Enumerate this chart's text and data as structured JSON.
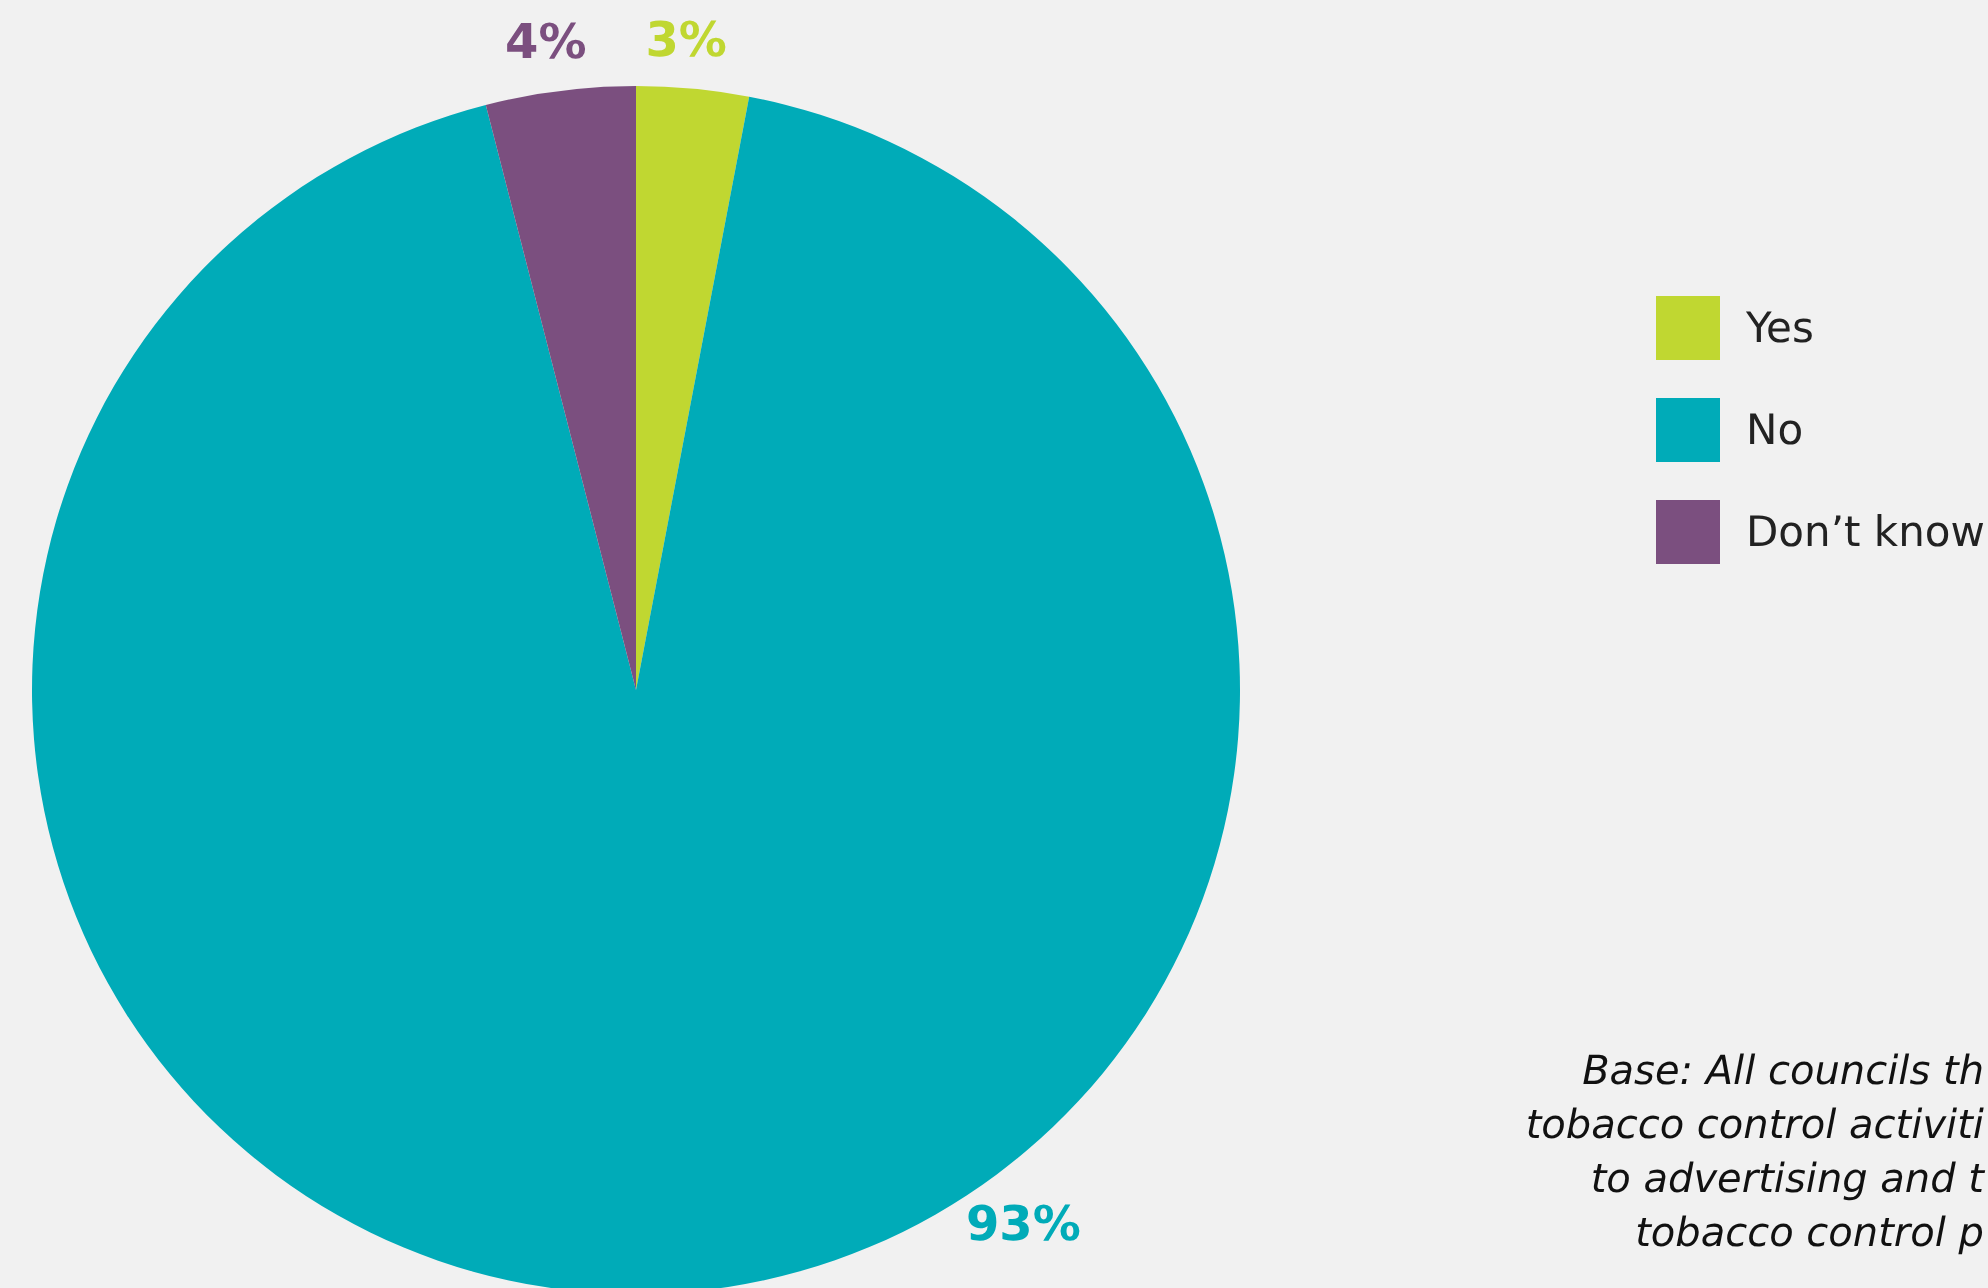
{
  "chart_data": {
    "type": "pie",
    "categories": [
      "Yes",
      "No",
      "Don’t know"
    ],
    "values": [
      3,
      93,
      4
    ],
    "colors": [
      "#c0d731",
      "#00abb8",
      "#7b4f7f"
    ],
    "value_labels": [
      "3%",
      "93%",
      "4%"
    ],
    "legend": "right",
    "annotations": [
      "Base: All councils th\ntobacco control activiti\nto advertising and t\ntobacco control p"
    ]
  }
}
